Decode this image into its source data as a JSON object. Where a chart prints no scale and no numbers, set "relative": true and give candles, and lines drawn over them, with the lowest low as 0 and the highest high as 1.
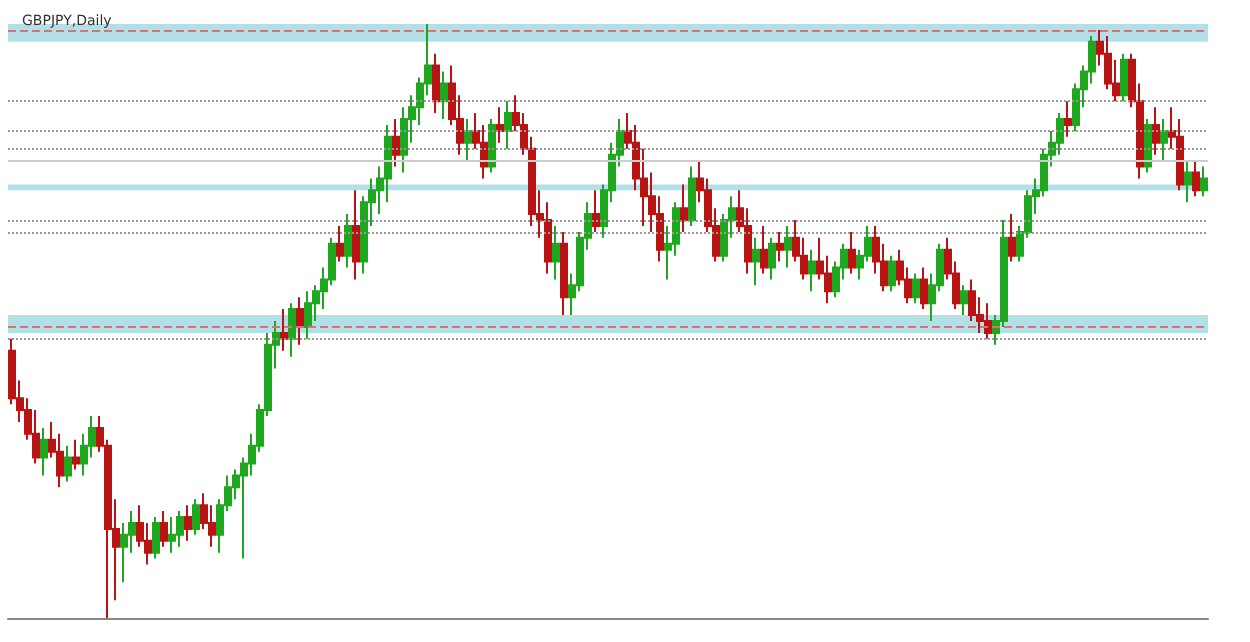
{
  "chart_data": {
    "type": "candlestick",
    "title": "GBPJPY,Daily",
    "relative": true,
    "categories": [
      null,
      null,
      null,
      null,
      null,
      null,
      null,
      null,
      null,
      null,
      null,
      null,
      null,
      null,
      null,
      null,
      null,
      null,
      null,
      null,
      null,
      null,
      null,
      null,
      null,
      null,
      null,
      null,
      null,
      null,
      null,
      null,
      null,
      null,
      null,
      null,
      null,
      null,
      null,
      null,
      null,
      null,
      null,
      null,
      null,
      null,
      null,
      null,
      null,
      null,
      null,
      null,
      null,
      null,
      null,
      null,
      null,
      null,
      null,
      null,
      null,
      null,
      null,
      null,
      null,
      null,
      null,
      null,
      null,
      null,
      null,
      null,
      null,
      null,
      null,
      null,
      null,
      null,
      null,
      null,
      null,
      null,
      null,
      null,
      null,
      null,
      null,
      null,
      null,
      null,
      null,
      null,
      null,
      null,
      null,
      null,
      null,
      null,
      null,
      null,
      null,
      null,
      null,
      null,
      null,
      null,
      null,
      null,
      null,
      null,
      null,
      null,
      null,
      null,
      null,
      null,
      null,
      null,
      null,
      null,
      null,
      null,
      null,
      null,
      null,
      null,
      null,
      null,
      null,
      null,
      null,
      null,
      null,
      null,
      null,
      null,
      null,
      null,
      null,
      null,
      null,
      null,
      null,
      null,
      null,
      null,
      null,
      null,
      null,
      null
    ],
    "ohlc": [
      [
        0.45,
        0.47,
        0.36,
        0.37
      ],
      [
        0.37,
        0.4,
        0.33,
        0.35
      ],
      [
        0.35,
        0.37,
        0.3,
        0.31
      ],
      [
        0.31,
        0.35,
        0.26,
        0.27
      ],
      [
        0.27,
        0.32,
        0.24,
        0.3
      ],
      [
        0.3,
        0.33,
        0.27,
        0.28
      ],
      [
        0.28,
        0.31,
        0.22,
        0.24
      ],
      [
        0.24,
        0.29,
        0.23,
        0.27
      ],
      [
        0.27,
        0.3,
        0.25,
        0.26
      ],
      [
        0.26,
        0.31,
        0.24,
        0.29
      ],
      [
        0.29,
        0.34,
        0.27,
        0.32
      ],
      [
        0.32,
        0.34,
        0.28,
        0.29
      ],
      [
        0.29,
        0.3,
        0.0,
        0.15
      ],
      [
        0.15,
        0.2,
        0.03,
        0.12
      ],
      [
        0.12,
        0.16,
        0.06,
        0.14
      ],
      [
        0.14,
        0.18,
        0.11,
        0.16
      ],
      [
        0.16,
        0.19,
        0.12,
        0.13
      ],
      [
        0.13,
        0.16,
        0.09,
        0.11
      ],
      [
        0.11,
        0.17,
        0.1,
        0.16
      ],
      [
        0.16,
        0.18,
        0.12,
        0.13
      ],
      [
        0.13,
        0.17,
        0.11,
        0.14
      ],
      [
        0.14,
        0.18,
        0.12,
        0.17
      ],
      [
        0.17,
        0.19,
        0.13,
        0.15
      ],
      [
        0.15,
        0.2,
        0.14,
        0.19
      ],
      [
        0.19,
        0.21,
        0.15,
        0.16
      ],
      [
        0.16,
        0.19,
        0.12,
        0.14
      ],
      [
        0.14,
        0.2,
        0.11,
        0.19
      ],
      [
        0.19,
        0.24,
        0.18,
        0.22
      ],
      [
        0.22,
        0.25,
        0.2,
        0.24
      ],
      [
        0.24,
        0.27,
        0.1,
        0.26
      ],
      [
        0.26,
        0.31,
        0.24,
        0.29
      ],
      [
        0.29,
        0.36,
        0.28,
        0.35
      ],
      [
        0.35,
        0.48,
        0.34,
        0.46
      ],
      [
        0.46,
        0.5,
        0.42,
        0.48
      ],
      [
        0.48,
        0.52,
        0.45,
        0.47
      ],
      [
        0.47,
        0.53,
        0.44,
        0.52
      ],
      [
        0.52,
        0.54,
        0.46,
        0.49
      ],
      [
        0.49,
        0.55,
        0.47,
        0.53
      ],
      [
        0.53,
        0.56,
        0.5,
        0.55
      ],
      [
        0.55,
        0.59,
        0.52,
        0.57
      ],
      [
        0.57,
        0.64,
        0.56,
        0.63
      ],
      [
        0.63,
        0.66,
        0.6,
        0.61
      ],
      [
        0.61,
        0.68,
        0.59,
        0.66
      ],
      [
        0.66,
        0.72,
        0.57,
        0.6
      ],
      [
        0.6,
        0.71,
        0.58,
        0.7
      ],
      [
        0.7,
        0.74,
        0.66,
        0.72
      ],
      [
        0.72,
        0.76,
        0.68,
        0.74
      ],
      [
        0.74,
        0.83,
        0.7,
        0.81
      ],
      [
        0.81,
        0.84,
        0.76,
        0.78
      ],
      [
        0.78,
        0.86,
        0.75,
        0.84
      ],
      [
        0.84,
        0.88,
        0.8,
        0.86
      ],
      [
        0.86,
        0.91,
        0.83,
        0.9
      ],
      [
        0.9,
        1.0,
        0.88,
        0.93
      ],
      [
        0.93,
        0.95,
        0.85,
        0.87
      ],
      [
        0.87,
        0.92,
        0.84,
        0.9
      ],
      [
        0.9,
        0.93,
        0.83,
        0.84
      ],
      [
        0.84,
        0.88,
        0.78,
        0.8
      ],
      [
        0.8,
        0.84,
        0.77,
        0.82
      ],
      [
        0.82,
        0.85,
        0.79,
        0.8
      ],
      [
        0.8,
        0.83,
        0.74,
        0.76
      ],
      [
        0.76,
        0.84,
        0.75,
        0.83
      ],
      [
        0.83,
        0.86,
        0.8,
        0.82
      ],
      [
        0.82,
        0.87,
        0.79,
        0.85
      ],
      [
        0.85,
        0.88,
        0.82,
        0.83
      ],
      [
        0.83,
        0.85,
        0.78,
        0.79
      ],
      [
        0.79,
        0.81,
        0.66,
        0.68
      ],
      [
        0.68,
        0.72,
        0.64,
        0.67
      ],
      [
        0.67,
        0.7,
        0.58,
        0.6
      ],
      [
        0.6,
        0.66,
        0.57,
        0.63
      ],
      [
        0.63,
        0.65,
        0.51,
        0.54
      ],
      [
        0.54,
        0.58,
        0.51,
        0.56
      ],
      [
        0.56,
        0.65,
        0.55,
        0.64
      ],
      [
        0.64,
        0.7,
        0.62,
        0.68
      ],
      [
        0.68,
        0.72,
        0.65,
        0.66
      ],
      [
        0.66,
        0.73,
        0.64,
        0.72
      ],
      [
        0.72,
        0.8,
        0.7,
        0.78
      ],
      [
        0.78,
        0.84,
        0.76,
        0.82
      ],
      [
        0.82,
        0.85,
        0.79,
        0.8
      ],
      [
        0.8,
        0.83,
        0.72,
        0.74
      ],
      [
        0.74,
        0.79,
        0.66,
        0.71
      ],
      [
        0.71,
        0.75,
        0.65,
        0.68
      ],
      [
        0.68,
        0.71,
        0.6,
        0.62
      ],
      [
        0.62,
        0.66,
        0.57,
        0.63
      ],
      [
        0.63,
        0.7,
        0.61,
        0.69
      ],
      [
        0.69,
        0.73,
        0.65,
        0.67
      ],
      [
        0.67,
        0.76,
        0.66,
        0.74
      ],
      [
        0.74,
        0.77,
        0.7,
        0.72
      ],
      [
        0.72,
        0.74,
        0.65,
        0.66
      ],
      [
        0.66,
        0.69,
        0.6,
        0.61
      ],
      [
        0.61,
        0.68,
        0.6,
        0.67
      ],
      [
        0.67,
        0.71,
        0.64,
        0.69
      ],
      [
        0.69,
        0.72,
        0.65,
        0.66
      ],
      [
        0.66,
        0.69,
        0.58,
        0.6
      ],
      [
        0.6,
        0.64,
        0.56,
        0.62
      ],
      [
        0.62,
        0.66,
        0.58,
        0.59
      ],
      [
        0.59,
        0.64,
        0.57,
        0.63
      ],
      [
        0.63,
        0.65,
        0.6,
        0.62
      ],
      [
        0.62,
        0.66,
        0.59,
        0.64
      ],
      [
        0.64,
        0.67,
        0.6,
        0.61
      ],
      [
        0.61,
        0.64,
        0.57,
        0.58
      ],
      [
        0.58,
        0.62,
        0.55,
        0.6
      ],
      [
        0.6,
        0.64,
        0.57,
        0.58
      ],
      [
        0.58,
        0.61,
        0.53,
        0.55
      ],
      [
        0.55,
        0.6,
        0.54,
        0.59
      ],
      [
        0.59,
        0.63,
        0.57,
        0.62
      ],
      [
        0.62,
        0.65,
        0.58,
        0.59
      ],
      [
        0.59,
        0.62,
        0.57,
        0.61
      ],
      [
        0.61,
        0.66,
        0.6,
        0.64
      ],
      [
        0.64,
        0.66,
        0.58,
        0.6
      ],
      [
        0.6,
        0.63,
        0.55,
        0.56
      ],
      [
        0.56,
        0.61,
        0.55,
        0.6
      ],
      [
        0.6,
        0.62,
        0.56,
        0.57
      ],
      [
        0.57,
        0.59,
        0.53,
        0.54
      ],
      [
        0.54,
        0.58,
        0.53,
        0.57
      ],
      [
        0.57,
        0.59,
        0.52,
        0.53
      ],
      [
        0.53,
        0.58,
        0.5,
        0.56
      ],
      [
        0.56,
        0.63,
        0.55,
        0.62
      ],
      [
        0.62,
        0.64,
        0.57,
        0.58
      ],
      [
        0.58,
        0.6,
        0.52,
        0.53
      ],
      [
        0.53,
        0.56,
        0.51,
        0.55
      ],
      [
        0.55,
        0.57,
        0.5,
        0.51
      ],
      [
        0.51,
        0.54,
        0.48,
        0.5
      ],
      [
        0.5,
        0.53,
        0.47,
        0.48
      ],
      [
        0.48,
        0.51,
        0.46,
        0.5
      ],
      [
        0.5,
        0.67,
        0.49,
        0.64
      ],
      [
        0.64,
        0.68,
        0.6,
        0.61
      ],
      [
        0.61,
        0.66,
        0.6,
        0.65
      ],
      [
        0.65,
        0.72,
        0.64,
        0.71
      ],
      [
        0.71,
        0.74,
        0.68,
        0.72
      ],
      [
        0.72,
        0.79,
        0.71,
        0.78
      ],
      [
        0.78,
        0.82,
        0.76,
        0.8
      ],
      [
        0.8,
        0.85,
        0.78,
        0.84
      ],
      [
        0.84,
        0.87,
        0.81,
        0.83
      ],
      [
        0.83,
        0.9,
        0.82,
        0.89
      ],
      [
        0.89,
        0.93,
        0.86,
        0.92
      ],
      [
        0.92,
        0.98,
        0.9,
        0.97
      ],
      [
        0.97,
        0.99,
        0.93,
        0.95
      ],
      [
        0.95,
        0.98,
        0.89,
        0.9
      ],
      [
        0.9,
        0.94,
        0.87,
        0.88
      ],
      [
        0.88,
        0.95,
        0.87,
        0.94
      ],
      [
        0.94,
        0.95,
        0.86,
        0.87
      ],
      [
        0.87,
        0.9,
        0.74,
        0.76
      ],
      [
        0.76,
        0.84,
        0.75,
        0.83
      ],
      [
        0.83,
        0.86,
        0.78,
        0.8
      ],
      [
        0.8,
        0.84,
        0.77,
        0.82
      ],
      [
        0.82,
        0.86,
        0.79,
        0.81
      ],
      [
        0.81,
        0.84,
        0.72,
        0.73
      ],
      [
        0.73,
        0.77,
        0.7,
        0.75
      ],
      [
        0.75,
        0.77,
        0.71,
        0.72
      ],
      [
        0.72,
        0.76,
        0.71,
        0.74
      ]
    ],
    "ref_lines": [
      {
        "axis": "y",
        "value": 0.99,
        "color": "#e07070",
        "line_style": "dashed"
      },
      {
        "axis": "y",
        "value": 0.49,
        "color": "#e07070",
        "line_style": "dashed"
      },
      {
        "axis": "y",
        "value": 0.77,
        "color": "#cccccc",
        "line_style": "solid"
      },
      {
        "axis": "y",
        "value": 0.87,
        "color": "#999999",
        "line_style": "dotted"
      },
      {
        "axis": "y",
        "value": 0.82,
        "color": "#999999",
        "line_style": "dotted"
      },
      {
        "axis": "y",
        "value": 0.79,
        "color": "#999999",
        "line_style": "dotted"
      },
      {
        "axis": "y",
        "value": 0.67,
        "color": "#999999",
        "line_style": "dotted"
      },
      {
        "axis": "y",
        "value": 0.65,
        "color": "#999999",
        "line_style": "dotted"
      },
      {
        "axis": "y",
        "value": 0.47,
        "color": "#999999",
        "line_style": "dotted"
      }
    ],
    "bands": [
      {
        "axis": "y",
        "from": 0.97,
        "to": 1.0,
        "color": "#a8dde6"
      },
      {
        "axis": "y",
        "from": 0.48,
        "to": 0.51,
        "color": "#a8dde6"
      },
      {
        "axis": "y",
        "from": 0.72,
        "to": 0.73,
        "color": "#a8dde6"
      }
    ],
    "grid": false
  }
}
